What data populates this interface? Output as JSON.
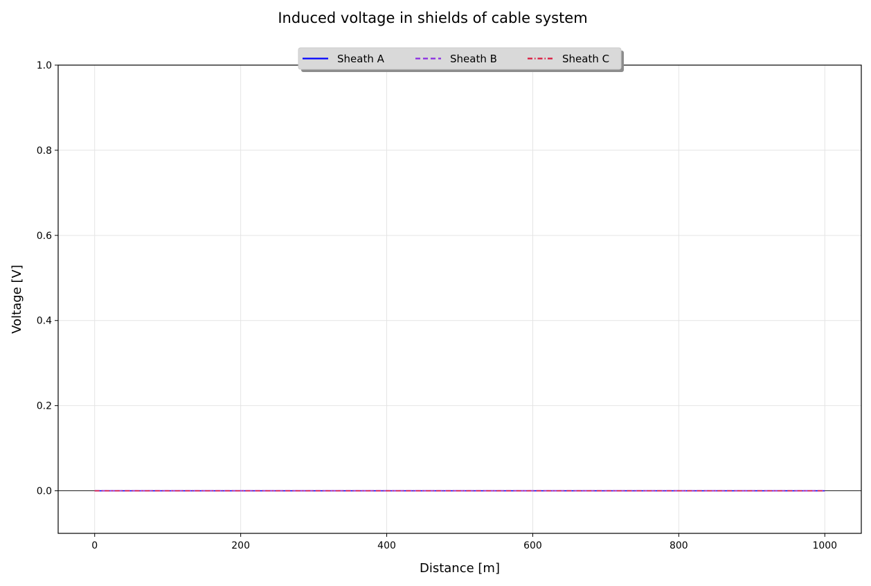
{
  "chart_data": {
    "type": "line",
    "title": "Induced voltage in shields of cable system",
    "xlabel": "Distance [m]",
    "ylabel": "Voltage [V]",
    "xlim": [
      -50,
      1050
    ],
    "ylim": [
      -0.1,
      1.0
    ],
    "xticks": [
      0,
      200,
      400,
      600,
      800,
      1000
    ],
    "xtick_labels": [
      "0",
      "200",
      "400",
      "600",
      "800",
      "1000"
    ],
    "yticks": [
      0.0,
      0.2,
      0.4,
      0.6,
      0.8,
      1.0
    ],
    "ytick_labels": [
      "0.0",
      "0.2",
      "0.4",
      "0.6",
      "0.8",
      "1.0"
    ],
    "grid": true,
    "reference_line_y": 0,
    "legend": {
      "placement": "top-center",
      "columns": 3
    },
    "x": [
      0,
      1000
    ],
    "series": [
      {
        "name": "Sheath A",
        "values": [
          0,
          0
        ],
        "color": "#0000ff",
        "style": "solid"
      },
      {
        "name": "Sheath B",
        "values": [
          0,
          0
        ],
        "color": "#8a2be2",
        "style": "dashed"
      },
      {
        "name": "Sheath C",
        "values": [
          0,
          0
        ],
        "color": "#dc143c",
        "style": "dashdot"
      }
    ]
  }
}
